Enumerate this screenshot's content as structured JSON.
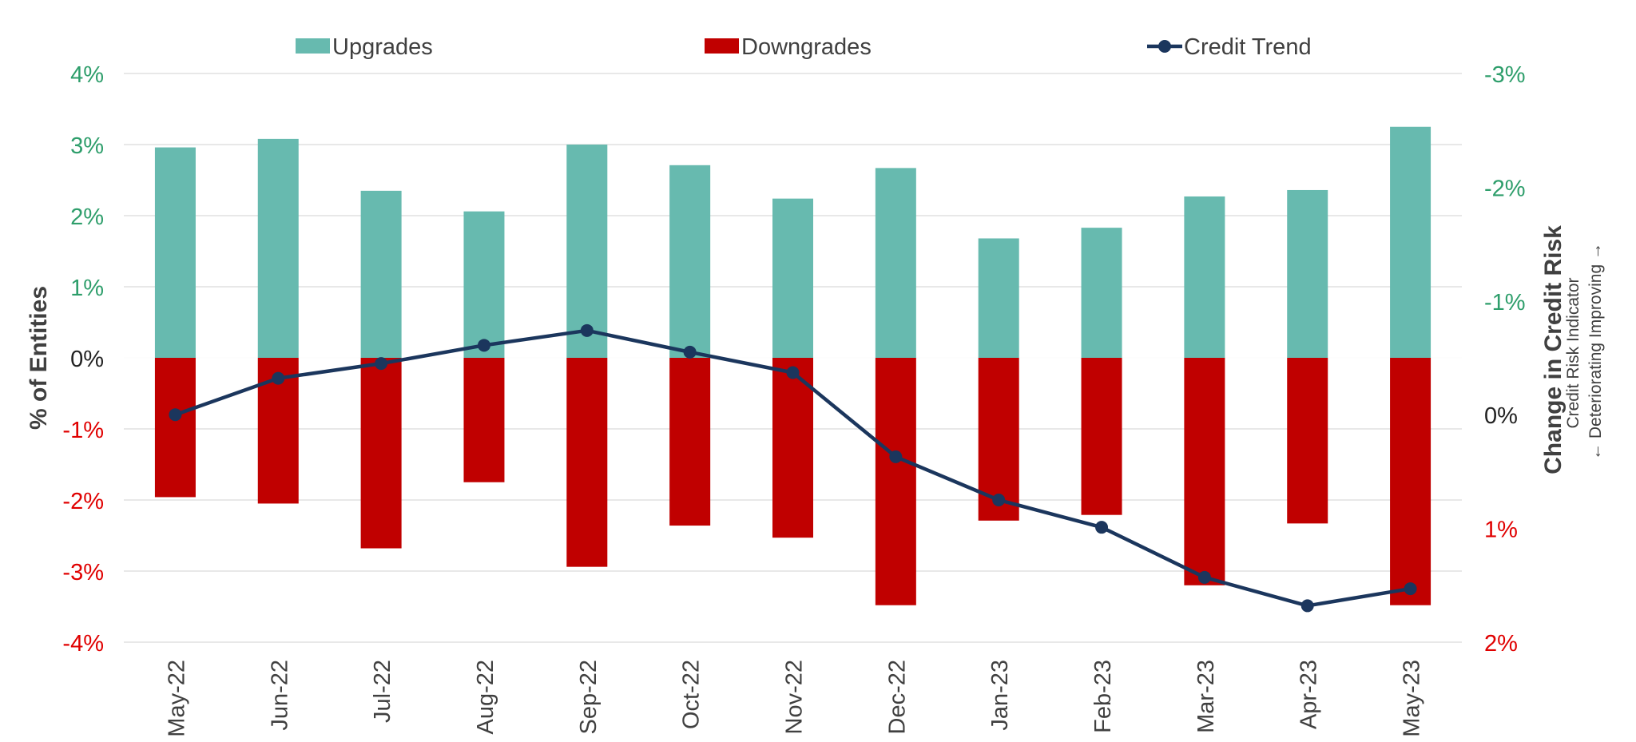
{
  "chart_data": {
    "type": "bar",
    "categories": [
      "May-22",
      "Jun-22",
      "Jul-22",
      "Aug-22",
      "Sep-22",
      "Oct-22",
      "Nov-22",
      "Dec-22",
      "Jan-23",
      "Feb-23",
      "Mar-23",
      "Apr-23",
      "May-23"
    ],
    "series": [
      {
        "name": "Upgrades",
        "type": "bar",
        "axis": "left",
        "color": "#67BAAF",
        "values": [
          2.96,
          3.08,
          2.35,
          2.06,
          3.0,
          2.71,
          2.24,
          2.67,
          1.68,
          1.83,
          2.27,
          2.36,
          3.25
        ]
      },
      {
        "name": "Downgrades",
        "type": "bar",
        "axis": "left",
        "color": "#C00000",
        "values": [
          -1.96,
          -2.05,
          -2.68,
          -1.75,
          -2.94,
          -2.36,
          -2.53,
          -3.48,
          -2.29,
          -2.21,
          -3.2,
          -2.33,
          -3.48
        ]
      },
      {
        "name": "Credit Trend",
        "type": "line",
        "axis": "right",
        "color": "#1B365D",
        "values": [
          0.0,
          -0.32,
          -0.45,
          -0.61,
          -0.74,
          -0.55,
          -0.37,
          0.37,
          0.75,
          0.99,
          1.43,
          1.68,
          1.53
        ]
      }
    ],
    "y_left": {
      "label": "% of Entities",
      "ylim": [
        -4,
        4
      ],
      "ticks": [
        {
          "value": 4,
          "label": "4%"
        },
        {
          "value": 3,
          "label": "3%"
        },
        {
          "value": 2,
          "label": "2%"
        },
        {
          "value": 1,
          "label": "1%"
        },
        {
          "value": 0,
          "label": "0%"
        },
        {
          "value": -1,
          "label": "-1%"
        },
        {
          "value": -2,
          "label": "-2%"
        },
        {
          "value": -3,
          "label": "-3%"
        },
        {
          "value": -4,
          "label": "-4%"
        }
      ]
    },
    "y_right": {
      "label": "Change in Credit Risk",
      "sublabel": "Credit Risk Indicator",
      "direction_label": "← Deteriorating Improving →",
      "reversed": true,
      "ylim": [
        -3,
        2
      ],
      "ticks": [
        {
          "value": -3,
          "label": "-3%"
        },
        {
          "value": -2,
          "label": "-2%"
        },
        {
          "value": -1,
          "label": "-1%"
        },
        {
          "value": 0,
          "label": "0%"
        },
        {
          "value": 1,
          "label": "1%"
        },
        {
          "value": 2,
          "label": "2%"
        }
      ]
    },
    "legend": {
      "position": "top",
      "items": [
        {
          "label": "Upgrades",
          "kind": "box",
          "color": "#67BAAF"
        },
        {
          "label": "Downgrades",
          "kind": "box",
          "color": "#C00000"
        },
        {
          "label": "Credit Trend",
          "kind": "line-marker",
          "color": "#1B365D"
        }
      ]
    },
    "grid": true,
    "colors": {
      "positive_tick": "#2E9E6B",
      "negative_tick": "#E00000",
      "neutral_tick": "#222222",
      "grid": "#D9D9D9",
      "axis_text": "#404040"
    }
  }
}
